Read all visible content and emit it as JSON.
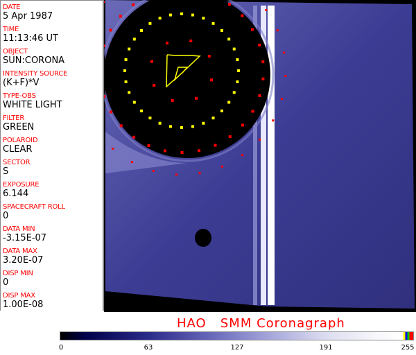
{
  "header_fields": [
    {
      "label": "DATE",
      "value": "5 Apr 1987"
    },
    {
      "label": "TIME",
      "value": "11:13:46 UT"
    },
    {
      "label": "OBJECT",
      "value": "SUN:CORONA"
    },
    {
      "label": "INTENSITY SOURCE",
      "value": "(K+F)*V"
    },
    {
      "label": "TYPE-OBS",
      "value": "WHITE LIGHT"
    },
    {
      "label": "FILTER",
      "value": "GREEN"
    },
    {
      "label": "POLAROID",
      "value": "CLEAR"
    },
    {
      "label": "SECTOR",
      "value": "S"
    },
    {
      "label": "EXPOSURE",
      "value": "6.144"
    },
    {
      "label": "SPACECRAFT ROLL",
      "value": "0"
    },
    {
      "label": "DATA MIN",
      "value": "-3.15E-07"
    },
    {
      "label": "DATA MAX",
      "value": "3.20E-07"
    },
    {
      "label": "DISP MIN",
      "value": "0"
    },
    {
      "label": "DISP MAX",
      "value": "1.00E-08"
    }
  ],
  "title": "HAO   SMM Coronagraph",
  "colorbar": {
    "ticks": [
      "0",
      "63",
      "127",
      "191",
      "255"
    ],
    "min": 0,
    "max": 255
  },
  "colors": {
    "label": "#ff0000",
    "marker_red": "#ff0000",
    "marker_yellow": "#ffff00",
    "image_blue": "#3a3a90"
  }
}
